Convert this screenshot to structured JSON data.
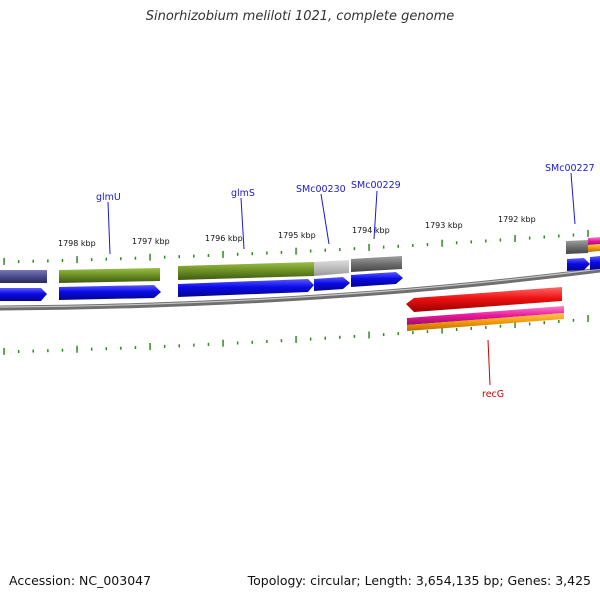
{
  "title": "Sinorhizobium meliloti 1021, complete genome",
  "footer": {
    "accession": "Accession: NC_003047",
    "summary": "Topology: circular; Length: 3,654,135 bp; Genes: 3,425"
  },
  "ticks": [
    "1798 kbp",
    "1797 kbp",
    "1796 kbp",
    "1795 kbp",
    "1794 kbp",
    "1793 kbp",
    "1792 kbp"
  ],
  "genes": [
    {
      "name": "glmU",
      "color": "#1a1ad0"
    },
    {
      "name": "glmS",
      "color": "#1a1ad0"
    },
    {
      "name": "SMc00230",
      "color": "#1a1ad0"
    },
    {
      "name": "SMc00229",
      "color": "#1a1ad0"
    },
    {
      "name": "SMc00227",
      "color": "#1a1ad0"
    },
    {
      "name": "recG",
      "color": "#cc0000"
    }
  ],
  "colors": {
    "forward_cds": "#0a0ae8",
    "reverse_cds": "#ee1111",
    "olive_feature": "#6b8e23",
    "gray_feature": "#6e6e6e",
    "purple_feature": "#4b4b8c",
    "pink_feature": "#e8189a",
    "orange_feature": "#f39a0a",
    "backbone": "#8a8a8a",
    "tick_mark": "#2e8b1e"
  }
}
